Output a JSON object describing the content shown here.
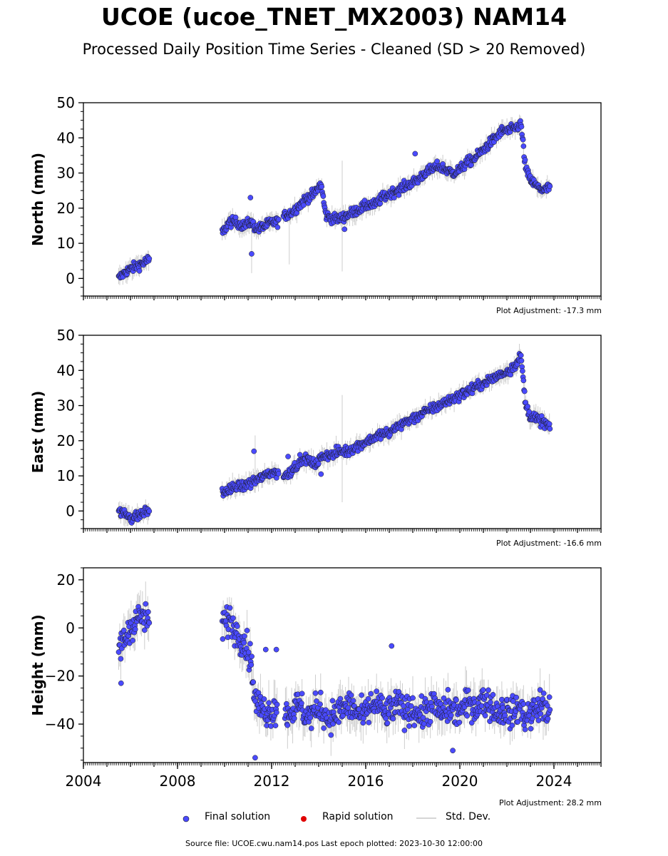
{
  "header": {
    "title": "UCOE (ucoe_TNET_MX2003) NAM14",
    "subtitle": "Processed Daily Position Time Series - Cleaned (SD > 20 Removed)"
  },
  "legend": {
    "final_label": "Final solution",
    "rapid_label": "Rapid solution",
    "std_label": "Std. Dev."
  },
  "footer": {
    "source": "Source file: UCOE.cwu.nam14.pos  Last epoch plotted: 2023-10-30 12:00:00"
  },
  "colors": {
    "final": "#4a4aff",
    "final_edge": "#1a1a1a",
    "rapid": "#e00000",
    "std": "#c8c8c8"
  },
  "chart_data": [
    {
      "type": "scatter",
      "ylabel": "North (mm)",
      "xlim": [
        2004,
        2026
      ],
      "ylim": [
        -5,
        50
      ],
      "yticks": [
        0,
        10,
        20,
        30,
        40,
        50
      ],
      "plot_adjustment": "Plot Adjustment: -17.3 mm",
      "series": [
        {
          "name": "Final solution",
          "x": [
            2005.5,
            2005.8,
            2006.1,
            2006.4,
            2006.7,
            2009.9,
            2010.2,
            2010.5,
            2010.8,
            2011.1,
            2011.4,
            2011.7,
            2012.0,
            2012.2,
            2012.6,
            2012.9,
            2013.2,
            2013.5,
            2013.8,
            2014.1,
            2014.3,
            2014.6,
            2014.9,
            2015.2,
            2015.5,
            2015.8,
            2016.1,
            2016.4,
            2016.7,
            2017.0,
            2017.3,
            2017.6,
            2017.9,
            2018.2,
            2018.5,
            2018.8,
            2019.1,
            2019.4,
            2019.7,
            2020.0,
            2020.3,
            2020.6,
            2020.9,
            2021.2,
            2021.5,
            2021.8,
            2022.1,
            2022.4,
            2022.6,
            2022.8,
            2023.0,
            2023.3,
            2023.6,
            2023.8
          ],
          "y": [
            0,
            2,
            3,
            4,
            5,
            13,
            16,
            16,
            15,
            16,
            14,
            15,
            16,
            16,
            18,
            19,
            21,
            23,
            24,
            27,
            18,
            17,
            17,
            18,
            19,
            20,
            21,
            21,
            23,
            24,
            25,
            26,
            27,
            28,
            30,
            31,
            32,
            31,
            30,
            31,
            33,
            34,
            36,
            38,
            40,
            42,
            42,
            43,
            44,
            31,
            28,
            26,
            25,
            26
          ]
        }
      ],
      "std_bars": [
        {
          "x": 2011.15,
          "low": 1.5,
          "high": 15
        },
        {
          "x": 2012.75,
          "low": 4,
          "high": 19
        },
        {
          "x": 2015.0,
          "low": 2,
          "high": 33.5
        }
      ],
      "outliers": [
        {
          "x": 2011.1,
          "y": 23
        },
        {
          "x": 2011.15,
          "y": 7
        },
        {
          "x": 2015.1,
          "y": 14
        },
        {
          "x": 2018.1,
          "y": 35.5
        }
      ]
    },
    {
      "type": "scatter",
      "ylabel": "East (mm)",
      "xlim": [
        2004,
        2026
      ],
      "ylim": [
        -5,
        50
      ],
      "yticks": [
        0,
        10,
        20,
        30,
        40,
        50
      ],
      "plot_adjustment": "Plot Adjustment: -16.6 mm",
      "series": [
        {
          "name": "Final solution",
          "x": [
            2005.5,
            2005.8,
            2006.1,
            2006.4,
            2006.7,
            2009.9,
            2010.2,
            2010.5,
            2010.8,
            2011.1,
            2011.4,
            2011.7,
            2012.0,
            2012.2,
            2012.6,
            2012.9,
            2013.2,
            2013.5,
            2013.8,
            2014.1,
            2014.3,
            2014.6,
            2014.9,
            2015.2,
            2015.5,
            2015.8,
            2016.1,
            2016.4,
            2016.7,
            2017.0,
            2017.3,
            2017.6,
            2017.9,
            2018.2,
            2018.5,
            2018.8,
            2019.1,
            2019.4,
            2019.7,
            2020.0,
            2020.3,
            2020.6,
            2020.9,
            2021.2,
            2021.5,
            2021.8,
            2022.1,
            2022.4,
            2022.6,
            2022.8,
            2023.0,
            2023.3,
            2023.6,
            2023.8
          ],
          "y": [
            0,
            -1,
            -2,
            -1,
            0,
            5,
            6,
            7,
            7,
            8,
            9,
            10,
            11,
            11,
            10,
            12,
            14,
            15,
            13,
            15,
            16,
            16,
            17,
            17,
            18,
            19,
            20,
            21,
            22,
            22,
            24,
            25,
            26,
            27,
            28,
            29,
            30,
            31,
            32,
            33,
            34,
            35,
            36,
            37,
            38,
            39,
            40,
            42,
            44,
            30,
            27,
            26,
            25,
            24
          ]
        }
      ],
      "std_bars": [
        {
          "x": 2011.3,
          "low": 6,
          "high": 21.5
        },
        {
          "x": 2015.0,
          "low": 2.5,
          "high": 33
        }
      ],
      "outliers": [
        {
          "x": 2011.25,
          "y": 17
        },
        {
          "x": 2012.7,
          "y": 15.5
        },
        {
          "x": 2014.1,
          "y": 10.5
        }
      ]
    },
    {
      "type": "scatter",
      "ylabel": "Height (mm)",
      "xlim": [
        2004,
        2026
      ],
      "ylim": [
        -56,
        25
      ],
      "yticks": [
        -40,
        -20,
        0,
        20
      ],
      "xticks": [
        2004,
        2008,
        2012,
        2016,
        2020,
        2024
      ],
      "plot_adjustment": "Plot Adjustment: 28.2 mm",
      "series": [
        {
          "name": "Final solution",
          "x": [
            2005.5,
            2005.8,
            2006.1,
            2006.4,
            2006.7,
            2009.9,
            2010.2,
            2010.5,
            2010.8,
            2011.1,
            2011.3,
            2011.6,
            2011.9,
            2012.2,
            2012.6,
            2012.9,
            2013.2,
            2013.5,
            2013.8,
            2014.1,
            2014.4,
            2014.7,
            2015.0,
            2015.3,
            2015.6,
            2015.9,
            2016.2,
            2016.5,
            2016.8,
            2017.1,
            2017.4,
            2017.7,
            2018.0,
            2018.3,
            2018.6,
            2018.9,
            2019.2,
            2019.5,
            2019.8,
            2020.1,
            2020.4,
            2020.7,
            2021.0,
            2021.3,
            2021.6,
            2021.9,
            2022.2,
            2022.5,
            2022.8,
            2023.1,
            2023.4,
            2023.7
          ],
          "y": [
            -8,
            -4,
            2,
            5,
            3,
            1,
            4,
            -2,
            -5,
            -12,
            -30,
            -34,
            -35,
            -33,
            -36,
            -34,
            -32,
            -37,
            -35,
            -33,
            -38,
            -36,
            -34,
            -32,
            -35,
            -37,
            -33,
            -31,
            -36,
            -34,
            -32,
            -35,
            -33,
            -37,
            -34,
            -32,
            -36,
            -33,
            -35,
            -34,
            -31,
            -33,
            -30,
            -32,
            -35,
            -34,
            -36,
            -33,
            -37,
            -35,
            -32,
            -34
          ]
        }
      ],
      "std_bars": [],
      "outliers": [
        {
          "x": 2005.6,
          "y": -23
        },
        {
          "x": 2011.3,
          "y": -54
        },
        {
          "x": 2011.75,
          "y": -9
        },
        {
          "x": 2012.2,
          "y": -9
        },
        {
          "x": 2017.1,
          "y": -7.5
        },
        {
          "x": 2019.7,
          "y": -51
        }
      ]
    }
  ]
}
